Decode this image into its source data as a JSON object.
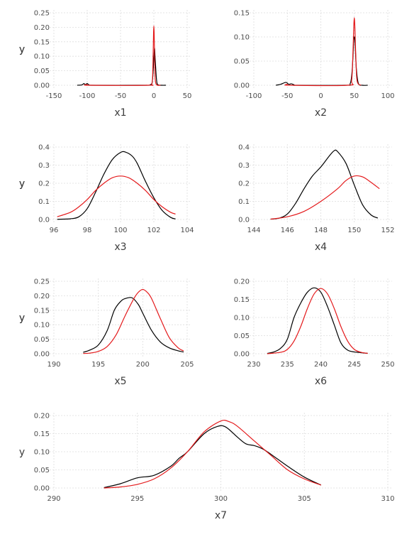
{
  "colors": {
    "series_black": "#000000",
    "series_red": "#e41a1c"
  },
  "chart_data": [
    {
      "type": "line",
      "xlabel": "x1",
      "ylabel": "y",
      "xlim": [
        -150,
        50
      ],
      "ylim": [
        0,
        0.25
      ],
      "xticks": [
        -150,
        -100,
        -50,
        0,
        50
      ],
      "yticks": [
        0.0,
        0.05,
        0.1,
        0.15,
        0.2,
        0.25
      ],
      "yfmt": 2,
      "grid": true,
      "series": [
        {
          "color": "#000000",
          "points": [
            [
              -115,
              0
            ],
            [
              -108,
              0.001
            ],
            [
              -105,
              0.006
            ],
            [
              -103,
              0.002
            ],
            [
              -100,
              0.006
            ],
            [
              -97,
              0.001
            ],
            [
              -90,
              0
            ],
            [
              -20,
              0
            ],
            [
              -5,
              0.002
            ],
            [
              -2,
              0.02
            ],
            [
              0,
              0.09
            ],
            [
              1,
              0.128
            ],
            [
              2,
              0.09
            ],
            [
              4,
              0.02
            ],
            [
              6,
              0.002
            ],
            [
              12,
              0
            ],
            [
              18,
              0
            ]
          ]
        },
        {
          "color": "#e41a1c",
          "points": [
            [
              -103,
              0
            ],
            [
              -100,
              0.002
            ],
            [
              -97,
              0
            ],
            [
              -10,
              0
            ],
            [
              -3,
              0.006
            ],
            [
              -1.5,
              0.06
            ],
            [
              0,
              0.205
            ],
            [
              1.5,
              0.06
            ],
            [
              3,
              0.006
            ],
            [
              10,
              0
            ]
          ]
        }
      ]
    },
    {
      "type": "line",
      "xlabel": "x2",
      "ylabel": "y",
      "xlim": [
        -100,
        100
      ],
      "ylim": [
        0,
        0.15
      ],
      "xticks": [
        -100,
        -50,
        0,
        50,
        100
      ],
      "yticks": [
        0.0,
        0.05,
        0.1,
        0.15
      ],
      "yfmt": 2,
      "grid": true,
      "series": [
        {
          "color": "#000000",
          "points": [
            [
              -67,
              0
            ],
            [
              -60,
              0.002
            ],
            [
              -52,
              0.006
            ],
            [
              -48,
              0.002
            ],
            [
              -44,
              0.003
            ],
            [
              -40,
              0.001
            ],
            [
              -35,
              0
            ],
            [
              36,
              0
            ],
            [
              44,
              0.004
            ],
            [
              47,
              0.035
            ],
            [
              49,
              0.09
            ],
            [
              50,
              0.1
            ],
            [
              51,
              0.09
            ],
            [
              53,
              0.035
            ],
            [
              56,
              0.004
            ],
            [
              62,
              0
            ],
            [
              70,
              0
            ]
          ]
        },
        {
          "color": "#e41a1c",
          "points": [
            [
              -54,
              0
            ],
            [
              -50,
              0.002
            ],
            [
              -46,
              0
            ],
            [
              40,
              0
            ],
            [
              46,
              0.01
            ],
            [
              48,
              0.07
            ],
            [
              50,
              0.14
            ],
            [
              52,
              0.07
            ],
            [
              54,
              0.01
            ],
            [
              60,
              0
            ]
          ]
        }
      ]
    },
    {
      "type": "line",
      "xlabel": "x3",
      "ylabel": "y",
      "xlim": [
        96,
        104
      ],
      "ylim": [
        0,
        0.4
      ],
      "xticks": [
        96,
        98,
        100,
        102,
        104
      ],
      "yticks": [
        0.0,
        0.1,
        0.2,
        0.3,
        0.4
      ],
      "yfmt": 1,
      "grid": true,
      "series": [
        {
          "color": "#000000",
          "points": [
            [
              96.2,
              0.001
            ],
            [
              97,
              0.004
            ],
            [
              97.5,
              0.015
            ],
            [
              98,
              0.06
            ],
            [
              98.5,
              0.15
            ],
            [
              99,
              0.25
            ],
            [
              99.5,
              0.33
            ],
            [
              100,
              0.37
            ],
            [
              100.3,
              0.372
            ],
            [
              100.7,
              0.35
            ],
            [
              101,
              0.31
            ],
            [
              101.5,
              0.21
            ],
            [
              102,
              0.12
            ],
            [
              102.5,
              0.05
            ],
            [
              103,
              0.012
            ],
            [
              103.3,
              0.003
            ]
          ]
        },
        {
          "color": "#e41a1c",
          "points": [
            [
              96.2,
              0.015
            ],
            [
              97,
              0.04
            ],
            [
              97.5,
              0.07
            ],
            [
              98,
              0.11
            ],
            [
              98.5,
              0.16
            ],
            [
              99,
              0.2
            ],
            [
              99.5,
              0.23
            ],
            [
              100,
              0.24
            ],
            [
              100.5,
              0.23
            ],
            [
              101,
              0.2
            ],
            [
              101.5,
              0.16
            ],
            [
              102,
              0.11
            ],
            [
              102.5,
              0.07
            ],
            [
              103,
              0.04
            ],
            [
              103.3,
              0.03
            ]
          ]
        }
      ]
    },
    {
      "type": "line",
      "xlabel": "x4",
      "ylabel": "y",
      "xlim": [
        144,
        152
      ],
      "ylim": [
        0,
        0.4
      ],
      "xticks": [
        144,
        146,
        148,
        150,
        152
      ],
      "yticks": [
        0.0,
        0.1,
        0.2,
        0.3,
        0.4
      ],
      "yfmt": 1,
      "grid": true,
      "series": [
        {
          "color": "#000000",
          "points": [
            [
              145,
              0.002
            ],
            [
              145.5,
              0.007
            ],
            [
              146,
              0.03
            ],
            [
              146.5,
              0.09
            ],
            [
              147,
              0.17
            ],
            [
              147.5,
              0.24
            ],
            [
              148,
              0.29
            ],
            [
              148.5,
              0.35
            ],
            [
              148.8,
              0.38
            ],
            [
              149,
              0.375
            ],
            [
              149.5,
              0.31
            ],
            [
              150,
              0.19
            ],
            [
              150.5,
              0.08
            ],
            [
              151,
              0.025
            ],
            [
              151.4,
              0.008
            ]
          ]
        },
        {
          "color": "#e41a1c",
          "points": [
            [
              145,
              0.002
            ],
            [
              146,
              0.015
            ],
            [
              147,
              0.045
            ],
            [
              148,
              0.1
            ],
            [
              149,
              0.17
            ],
            [
              149.5,
              0.215
            ],
            [
              150,
              0.24
            ],
            [
              150.5,
              0.235
            ],
            [
              151,
              0.205
            ],
            [
              151.5,
              0.17
            ]
          ]
        }
      ]
    },
    {
      "type": "line",
      "xlabel": "x5",
      "ylabel": "y",
      "xlim": [
        190,
        205
      ],
      "ylim": [
        0,
        0.25
      ],
      "xticks": [
        190,
        195,
        200,
        205
      ],
      "yticks": [
        0.0,
        0.05,
        0.1,
        0.15,
        0.2,
        0.25
      ],
      "yfmt": 2,
      "grid": true,
      "series": [
        {
          "color": "#000000",
          "points": [
            [
              193.3,
              0.005
            ],
            [
              194,
              0.012
            ],
            [
              195,
              0.03
            ],
            [
              196,
              0.08
            ],
            [
              196.8,
              0.15
            ],
            [
              197.5,
              0.18
            ],
            [
              198,
              0.19
            ],
            [
              198.8,
              0.193
            ],
            [
              199.5,
              0.17
            ],
            [
              200,
              0.14
            ],
            [
              201,
              0.08
            ],
            [
              202,
              0.04
            ],
            [
              203,
              0.02
            ],
            [
              204,
              0.01
            ],
            [
              204.6,
              0.006
            ]
          ]
        },
        {
          "color": "#e41a1c",
          "points": [
            [
              193.3,
              0.001
            ],
            [
              194,
              0.002
            ],
            [
              195,
              0.008
            ],
            [
              196,
              0.025
            ],
            [
              197,
              0.065
            ],
            [
              198,
              0.13
            ],
            [
              199,
              0.19
            ],
            [
              199.5,
              0.212
            ],
            [
              200,
              0.222
            ],
            [
              200.5,
              0.212
            ],
            [
              201,
              0.19
            ],
            [
              202,
              0.12
            ],
            [
              203,
              0.055
            ],
            [
              204,
              0.02
            ],
            [
              204.6,
              0.01
            ]
          ]
        }
      ]
    },
    {
      "type": "line",
      "xlabel": "x6",
      "ylabel": "y",
      "xlim": [
        230,
        250
      ],
      "ylim": [
        0,
        0.2
      ],
      "xticks": [
        230,
        235,
        240,
        245,
        250
      ],
      "yticks": [
        0.0,
        0.05,
        0.1,
        0.15,
        0.2
      ],
      "yfmt": 2,
      "grid": true,
      "series": [
        {
          "color": "#000000",
          "points": [
            [
              232,
              0.001
            ],
            [
              233,
              0.005
            ],
            [
              234,
              0.015
            ],
            [
              235,
              0.04
            ],
            [
              236,
              0.1
            ],
            [
              237,
              0.14
            ],
            [
              238,
              0.17
            ],
            [
              239,
              0.182
            ],
            [
              240,
              0.17
            ],
            [
              241,
              0.13
            ],
            [
              242,
              0.08
            ],
            [
              243,
              0.03
            ],
            [
              244,
              0.01
            ],
            [
              245,
              0.005
            ],
            [
              246,
              0.003
            ],
            [
              247,
              0.001
            ]
          ]
        },
        {
          "color": "#e41a1c",
          "points": [
            [
              232,
              0
            ],
            [
              234,
              0.004
            ],
            [
              235,
              0.012
            ],
            [
              236,
              0.035
            ],
            [
              237,
              0.075
            ],
            [
              238,
              0.125
            ],
            [
              239,
              0.165
            ],
            [
              240,
              0.18
            ],
            [
              241,
              0.165
            ],
            [
              242,
              0.125
            ],
            [
              243,
              0.075
            ],
            [
              244,
              0.035
            ],
            [
              245,
              0.012
            ],
            [
              246,
              0.004
            ],
            [
              247,
              0.001
            ]
          ]
        }
      ]
    },
    {
      "type": "line",
      "xlabel": "x7",
      "ylabel": "y",
      "xlim": [
        290,
        310
      ],
      "ylim": [
        0,
        0.2
      ],
      "xticks": [
        290,
        295,
        300,
        305,
        310
      ],
      "yticks": [
        0.0,
        0.05,
        0.1,
        0.15,
        0.2
      ],
      "yfmt": 2,
      "grid": true,
      "series": [
        {
          "color": "#000000",
          "points": [
            [
              293,
              0.001
            ],
            [
              294,
              0.012
            ],
            [
              295,
              0.028
            ],
            [
              296,
              0.035
            ],
            [
              297,
              0.06
            ],
            [
              297.5,
              0.082
            ],
            [
              298,
              0.1
            ],
            [
              299,
              0.15
            ],
            [
              299.8,
              0.17
            ],
            [
              300.3,
              0.168
            ],
            [
              301,
              0.14
            ],
            [
              301.5,
              0.122
            ],
            [
              302,
              0.117
            ],
            [
              302.5,
              0.108
            ],
            [
              303,
              0.093
            ],
            [
              304,
              0.06
            ],
            [
              305,
              0.03
            ],
            [
              306,
              0.008
            ]
          ]
        },
        {
          "color": "#e41a1c",
          "points": [
            [
              293,
              0.0
            ],
            [
              294,
              0.003
            ],
            [
              295,
              0.01
            ],
            [
              296,
              0.025
            ],
            [
              297,
              0.055
            ],
            [
              298,
              0.1
            ],
            [
              299,
              0.155
            ],
            [
              300,
              0.185
            ],
            [
              300.5,
              0.183
            ],
            [
              301,
              0.17
            ],
            [
              302,
              0.13
            ],
            [
              303,
              0.09
            ],
            [
              304,
              0.05
            ],
            [
              305,
              0.025
            ],
            [
              306,
              0.008
            ]
          ]
        }
      ]
    }
  ]
}
